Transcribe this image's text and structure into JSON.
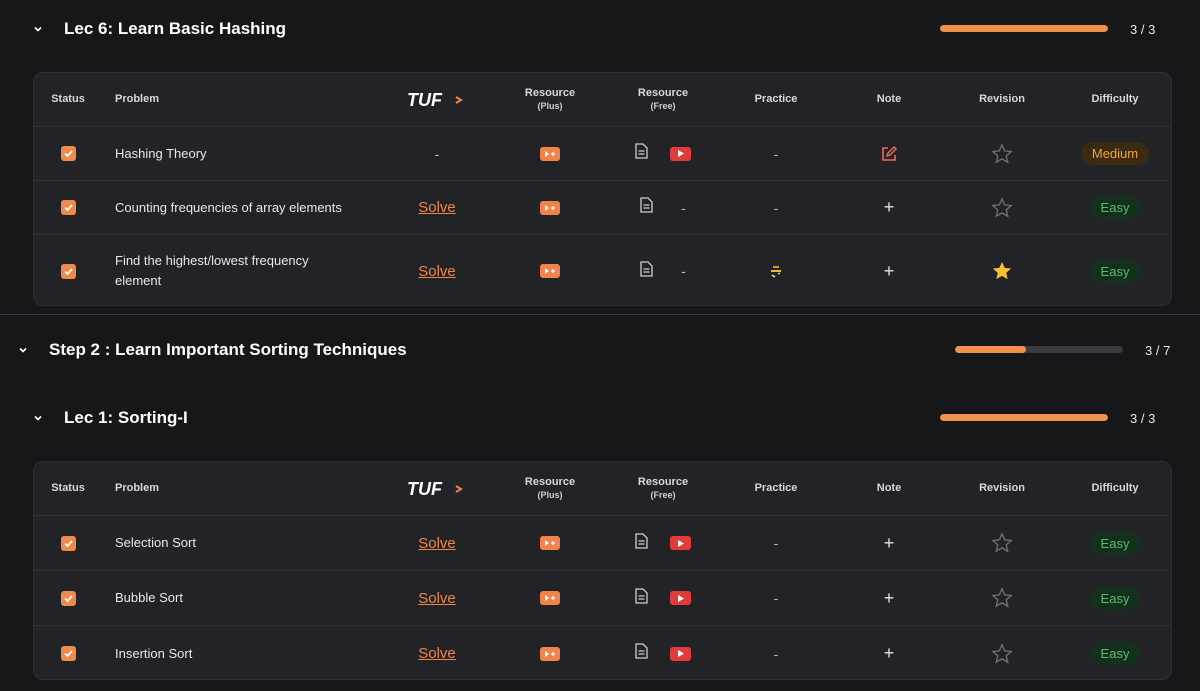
{
  "sections": [
    {
      "title": "Lec 6: Learn Basic Hashing",
      "progress_fraction": 1.0,
      "progress_text": "3 / 3"
    },
    {
      "title": "Step 2 : Learn Important Sorting Techniques",
      "progress_fraction": 0.43,
      "progress_text": "3 / 7"
    },
    {
      "title": "Lec 1: Sorting-I",
      "progress_fraction": 1.0,
      "progress_text": "3 / 3"
    }
  ],
  "table_headers": {
    "status": "Status",
    "problem": "Problem",
    "logo": "TUF",
    "resource_plus": "Resource",
    "resource_plus_sub": "(Plus)",
    "resource_free": "Resource",
    "resource_free_sub": "(Free)",
    "practice": "Practice",
    "note": "Note",
    "revision": "Revision",
    "difficulty": "Difficulty"
  },
  "hashing_rows": [
    {
      "problem": "Hashing Theory",
      "tuf": "-",
      "practice": "-",
      "difficulty": "Medium",
      "starred": false,
      "note": "edit-icon",
      "youtube": true
    },
    {
      "problem": "Counting frequencies of array elements",
      "tuf": "Solve",
      "practice": "-",
      "free_extra": "-",
      "difficulty": "Easy",
      "starred": false,
      "note": "plus-icon",
      "youtube": false
    },
    {
      "problem": "Find the highest/lowest frequency element",
      "tuf": "Solve",
      "practice": "loading-spinner-icon",
      "free_extra": "-",
      "difficulty": "Easy",
      "starred": true,
      "note": "plus-icon",
      "youtube": false
    }
  ],
  "sorting_rows": [
    {
      "problem": "Selection Sort",
      "tuf": "Solve",
      "practice": "-",
      "difficulty": "Easy",
      "starred": false,
      "note": "plus-icon",
      "youtube": true
    },
    {
      "problem": "Bubble Sort",
      "tuf": "Solve",
      "practice": "-",
      "difficulty": "Easy",
      "starred": false,
      "note": "plus-icon",
      "youtube": true
    },
    {
      "problem": "Insertion Sort",
      "tuf": "Solve",
      "practice": "-",
      "difficulty": "Easy",
      "starred": false,
      "note": "plus-icon",
      "youtube": true
    }
  ],
  "plus_sign": "+",
  "colors": {
    "accent": "#f0844a",
    "easy": "#5dbb6b",
    "medium": "#f0a23b",
    "star": "#f5c032",
    "youtube": "#e23b3b"
  }
}
